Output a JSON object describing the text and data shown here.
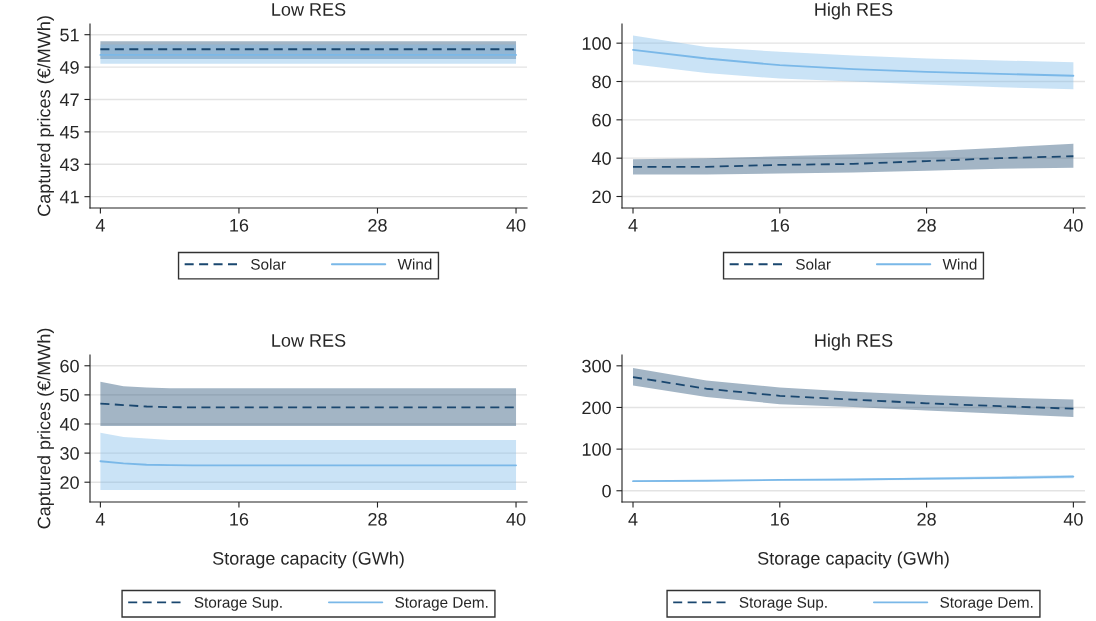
{
  "chart_data": [
    {
      "type": "line",
      "title": "Low RES",
      "ylabel": "Captured prices (€/MWh)",
      "x": [
        4,
        10,
        16,
        22,
        28,
        34,
        40
      ],
      "xlim": [
        3.1,
        40.95
      ],
      "xticks": [
        4,
        16,
        28,
        40
      ],
      "ylim": [
        40.3,
        51.66
      ],
      "yticks": [
        41,
        43,
        45,
        47,
        49,
        51
      ],
      "grid": "y",
      "legend": "bottom",
      "marker": "none",
      "series": [
        {
          "name": "Solar",
          "color": "#1a476f",
          "line_style": "dashed",
          "values": [
            50.1,
            50.1,
            50.1,
            50.1,
            50.1,
            50.1,
            50.1
          ],
          "lower": [
            49.5,
            49.5,
            49.5,
            49.5,
            49.5,
            49.5,
            49.5
          ],
          "upper": [
            50.6,
            50.6,
            50.6,
            50.6,
            50.6,
            50.6,
            50.6
          ]
        },
        {
          "name": "Wind",
          "color": "#7ab8e8",
          "line_style": "solid",
          "values": [
            49.75,
            49.75,
            49.75,
            49.75,
            49.75,
            49.75,
            49.75
          ],
          "lower": [
            49.2,
            49.2,
            49.2,
            49.2,
            49.2,
            49.2,
            49.2
          ],
          "upper": [
            50.4,
            50.4,
            50.4,
            50.4,
            50.4,
            50.4,
            50.4
          ]
        }
      ]
    },
    {
      "type": "line",
      "title": "High RES",
      "x": [
        4,
        10,
        16,
        22,
        28,
        34,
        40
      ],
      "xlim": [
        3.1,
        40.95
      ],
      "xticks": [
        4,
        16,
        28,
        40
      ],
      "ylim": [
        14,
        110
      ],
      "yticks": [
        20,
        40,
        60,
        80,
        100
      ],
      "grid": "y",
      "legend": "bottom",
      "marker": "none",
      "series": [
        {
          "name": "Solar",
          "color": "#1a476f",
          "line_style": "dashed",
          "values": [
            35.5,
            35.5,
            36.5,
            37,
            38.5,
            40,
            41
          ],
          "lower": [
            31.5,
            31.5,
            32,
            32.5,
            33.5,
            34.5,
            35
          ],
          "upper": [
            39.5,
            40,
            41,
            42,
            43.5,
            45.5,
            47.5
          ]
        },
        {
          "name": "Wind",
          "color": "#7ab8e8",
          "line_style": "solid",
          "values": [
            96.5,
            92,
            88.5,
            86.5,
            85,
            84,
            83
          ],
          "lower": [
            89,
            84.5,
            81.5,
            80,
            78.5,
            77,
            76
          ],
          "upper": [
            104,
            98,
            95.5,
            93.5,
            92,
            91,
            90
          ]
        }
      ]
    },
    {
      "type": "line",
      "title": "Low RES",
      "xlabel": "Storage capacity (GWh)",
      "ylabel": "Captured prices (€/MWh)",
      "x": [
        4,
        6,
        8,
        10,
        12,
        16,
        22,
        28,
        34,
        40
      ],
      "xlim": [
        3.1,
        40.95
      ],
      "xticks": [
        4,
        16,
        28,
        40
      ],
      "ylim": [
        13.2,
        63.7
      ],
      "yticks": [
        20,
        30,
        40,
        50,
        60
      ],
      "grid": "y",
      "legend": "bottom",
      "marker": "none",
      "series": [
        {
          "name": "Storage Sup.",
          "color": "#1a476f",
          "line_style": "dashed",
          "values": [
            47,
            46.5,
            46,
            45.8,
            45.7,
            45.7,
            45.7,
            45.7,
            45.7,
            45.7
          ],
          "lower": [
            39.3,
            39.3,
            39.3,
            39.3,
            39.3,
            39.3,
            39.3,
            39.3,
            39.3,
            39.3
          ],
          "upper": [
            54.5,
            53,
            52.5,
            52.3,
            52.3,
            52.3,
            52.3,
            52.3,
            52.3,
            52.3
          ]
        },
        {
          "name": "Storage Dem.",
          "color": "#7ab8e8",
          "line_style": "solid",
          "values": [
            27.2,
            26.5,
            26,
            25.9,
            25.8,
            25.8,
            25.8,
            25.8,
            25.8,
            25.8
          ],
          "lower": [
            17.3,
            17.3,
            17.3,
            17.3,
            17.3,
            17.3,
            17.3,
            17.3,
            17.3,
            17.3
          ],
          "upper": [
            37,
            35.5,
            35,
            34.5,
            34.5,
            34.5,
            34.5,
            34.5,
            34.5,
            34.5
          ]
        }
      ]
    },
    {
      "type": "line",
      "title": "High RES",
      "xlabel": "Storage capacity (GWh)",
      "x": [
        4,
        10,
        16,
        22,
        28,
        34,
        40
      ],
      "xlim": [
        3.1,
        40.95
      ],
      "xticks": [
        4,
        16,
        28,
        40
      ],
      "ylim": [
        -27,
        326
      ],
      "yticks": [
        0,
        100,
        200,
        300
      ],
      "grid": "y",
      "legend": "bottom",
      "marker": "none",
      "series": [
        {
          "name": "Storage Sup.",
          "color": "#1a476f",
          "line_style": "dashed",
          "values": [
            273,
            245,
            228,
            219,
            210,
            203,
            197
          ],
          "lower": [
            253,
            225,
            208,
            201,
            193,
            185,
            177
          ],
          "upper": [
            295,
            265,
            248,
            238,
            230,
            224,
            219
          ]
        },
        {
          "name": "Storage Dem.",
          "color": "#7ab8e8",
          "line_style": "solid",
          "values": [
            23,
            24,
            26,
            27,
            29,
            31,
            34
          ],
          "lower": [
            22,
            23,
            24,
            25,
            26,
            28,
            30
          ],
          "upper": [
            24,
            25,
            27,
            29,
            32,
            35,
            38
          ]
        }
      ]
    }
  ]
}
